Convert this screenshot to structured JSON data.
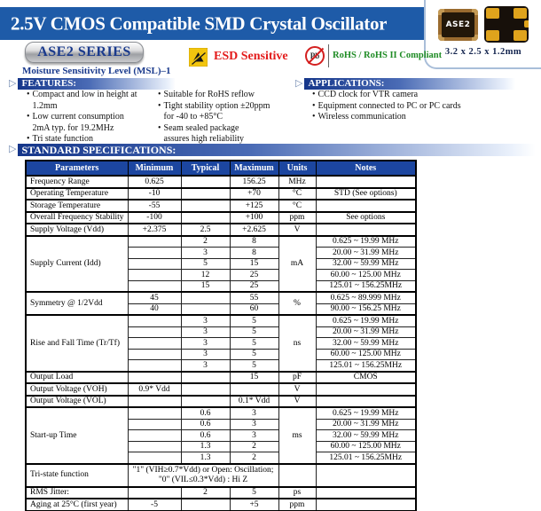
{
  "page": {
    "title": "2.5V CMOS Compatible SMD Crystal Oscillator",
    "series_badge": "ASE2 SERIES",
    "msl_note": "Moisture Sensitivity Level (MSL)–1",
    "esd_label": "ESD Sensitive",
    "pb_icon_text": "Pb",
    "rohs_label": "RoHS / RoHS II Compliant"
  },
  "package": {
    "chip_label": "ASE2",
    "dimensions": "3.2 x 2.5 x 1.2mm"
  },
  "colors": {
    "banner_blue": "#1E5BA8",
    "table_header_blue": "#1C46A0",
    "section_bar_navy": "#15368A",
    "esd_red": "#E31B1B",
    "rohs_green": "#1F8C25",
    "esd_yellow": "#F2C50E"
  },
  "sections": {
    "features": {
      "heading": "FEATURES:",
      "col1": [
        "Compact and low in height at 1.2mm",
        "Low current consumption\n2mA typ. for 19.2MHz",
        "Tri state function"
      ],
      "col2": [
        "Suitable for RoHS reflow",
        "Tight stability option ±20ppm\nfor -40 to +85°C",
        "Seam sealed package\nassures high reliability"
      ]
    },
    "applications": {
      "heading": "APPLICATIONS:",
      "items": [
        "CCD clock for VTR camera",
        "Equipment connected to PC or PC cards",
        "Wireless communication"
      ]
    },
    "specifications": {
      "heading": "STANDARD SPECIFICATIONS:"
    }
  },
  "spec_table": {
    "headers": [
      "Parameters",
      "Minimum",
      "Typical",
      "Maximum",
      "Units",
      "Notes"
    ],
    "rows": [
      {
        "g": true,
        "c": [
          {
            "t": "Frequency Range",
            "p": true
          },
          {
            "t": "0.625"
          },
          {
            "t": ""
          },
          {
            "t": "156.25"
          },
          {
            "t": "MHz"
          },
          {
            "t": ""
          }
        ]
      },
      {
        "g": true,
        "c": [
          {
            "t": "Operating Temperature",
            "p": true
          },
          {
            "t": "-10"
          },
          {
            "t": ""
          },
          {
            "t": "+70"
          },
          {
            "t": "°C"
          },
          {
            "t": "STD (See options)"
          }
        ]
      },
      {
        "g": true,
        "c": [
          {
            "t": "Storage Temperature",
            "p": true
          },
          {
            "t": "-55"
          },
          {
            "t": ""
          },
          {
            "t": "+125"
          },
          {
            "t": "°C"
          },
          {
            "t": ""
          }
        ]
      },
      {
        "g": true,
        "c": [
          {
            "t": "Overall Frequency Stability",
            "p": true
          },
          {
            "t": "-100"
          },
          {
            "t": ""
          },
          {
            "t": "+100"
          },
          {
            "t": "ppm"
          },
          {
            "t": "See options"
          }
        ]
      },
      {
        "g": true,
        "c": [
          {
            "t": "Supply Voltage (Vdd)",
            "p": true
          },
          {
            "t": "+2.375"
          },
          {
            "t": "2.5"
          },
          {
            "t": "+2.625"
          },
          {
            "t": "V"
          },
          {
            "t": ""
          }
        ]
      },
      {
        "g": true,
        "c": [
          {
            "t": "Supply Current (Idd)",
            "p": true,
            "rs": 5
          },
          {
            "t": ""
          },
          {
            "t": "2"
          },
          {
            "t": "8"
          },
          {
            "t": "mA",
            "rs": 5
          },
          {
            "t": "0.625 ~ 19.99 MHz"
          }
        ]
      },
      {
        "c": [
          {
            "t": ""
          },
          {
            "t": "3"
          },
          {
            "t": "8"
          },
          {
            "t": "20.00 ~ 31.99 MHz"
          }
        ]
      },
      {
        "c": [
          {
            "t": ""
          },
          {
            "t": "5"
          },
          {
            "t": "15"
          },
          {
            "t": "32.00 ~ 59.99 MHz"
          }
        ]
      },
      {
        "c": [
          {
            "t": ""
          },
          {
            "t": "12"
          },
          {
            "t": "25"
          },
          {
            "t": "60.00 ~ 125.00 MHz"
          }
        ]
      },
      {
        "c": [
          {
            "t": ""
          },
          {
            "t": "15"
          },
          {
            "t": "25"
          },
          {
            "t": "125.01 ~ 156.25MHz"
          }
        ]
      },
      {
        "g": true,
        "c": [
          {
            "t": "Symmetry  @ 1/2Vdd",
            "p": true,
            "rs": 2
          },
          {
            "t": "45"
          },
          {
            "t": ""
          },
          {
            "t": "55"
          },
          {
            "t": "%",
            "rs": 2
          },
          {
            "t": "0.625 ~ 89.999 MHz"
          }
        ]
      },
      {
        "c": [
          {
            "t": "40"
          },
          {
            "t": ""
          },
          {
            "t": "60"
          },
          {
            "t": "90.00 ~ 156.25 MHz"
          }
        ]
      },
      {
        "g": true,
        "c": [
          {
            "t": "Rise and Fall Time (Tr/Tf)",
            "p": true,
            "rs": 5
          },
          {
            "t": ""
          },
          {
            "t": "3"
          },
          {
            "t": "5"
          },
          {
            "t": "ns",
            "rs": 5
          },
          {
            "t": "0.625 ~ 19.99 MHz"
          }
        ]
      },
      {
        "c": [
          {
            "t": ""
          },
          {
            "t": "3"
          },
          {
            "t": "5"
          },
          {
            "t": "20.00 ~ 31.99 MHz"
          }
        ]
      },
      {
        "c": [
          {
            "t": ""
          },
          {
            "t": "3"
          },
          {
            "t": "5"
          },
          {
            "t": "32.00 ~ 59.99 MHz"
          }
        ]
      },
      {
        "c": [
          {
            "t": ""
          },
          {
            "t": "3"
          },
          {
            "t": "5"
          },
          {
            "t": "60.00 ~ 125.00 MHz"
          }
        ]
      },
      {
        "c": [
          {
            "t": ""
          },
          {
            "t": "3"
          },
          {
            "t": "5"
          },
          {
            "t": "125.01 ~ 156.25MHz"
          }
        ]
      },
      {
        "g": true,
        "c": [
          {
            "t": "Output Load",
            "p": true
          },
          {
            "t": ""
          },
          {
            "t": ""
          },
          {
            "t": "15"
          },
          {
            "t": "pF"
          },
          {
            "t": "CMOS"
          }
        ]
      },
      {
        "g": true,
        "c": [
          {
            "t": "Output Voltage (VOH)",
            "p": true
          },
          {
            "t": "0.9* Vdd"
          },
          {
            "t": ""
          },
          {
            "t": ""
          },
          {
            "t": "V"
          },
          {
            "t": ""
          }
        ]
      },
      {
        "g": true,
        "c": [
          {
            "t": "Output Voltage (VOL)",
            "p": true
          },
          {
            "t": ""
          },
          {
            "t": ""
          },
          {
            "t": "0.1* Vdd"
          },
          {
            "t": "V"
          },
          {
            "t": ""
          }
        ]
      },
      {
        "g": true,
        "c": [
          {
            "t": "Start-up Time",
            "p": true,
            "rs": 5
          },
          {
            "t": ""
          },
          {
            "t": "0.6"
          },
          {
            "t": "3"
          },
          {
            "t": "ms",
            "rs": 5
          },
          {
            "t": "0.625 ~ 19.99 MHz"
          }
        ]
      },
      {
        "c": [
          {
            "t": ""
          },
          {
            "t": "0.6"
          },
          {
            "t": "3"
          },
          {
            "t": "20.00 ~ 31.99 MHz"
          }
        ]
      },
      {
        "c": [
          {
            "t": ""
          },
          {
            "t": "0.6"
          },
          {
            "t": "3"
          },
          {
            "t": "32.00 ~ 59.99 MHz"
          }
        ]
      },
      {
        "c": [
          {
            "t": ""
          },
          {
            "t": "1.3"
          },
          {
            "t": "2"
          },
          {
            "t": "60.00 ~ 125.00 MHz"
          }
        ]
      },
      {
        "c": [
          {
            "t": ""
          },
          {
            "t": "1.3"
          },
          {
            "t": "2"
          },
          {
            "t": "125.01 ~ 156.25MHz"
          }
        ]
      },
      {
        "g": true,
        "tall": true,
        "c": [
          {
            "t": "Tri-state function",
            "p": true
          },
          {
            "t": "\"1\" (VIH≥0.7*Vdd) or Open: Oscillation;\n\"0\" (VIL≤0.3*Vdd) : Hi Z",
            "cs": 3
          },
          {
            "t": ""
          },
          {
            "t": ""
          }
        ]
      },
      {
        "g": true,
        "c": [
          {
            "t": "RMS Jitter:",
            "p": true
          },
          {
            "t": ""
          },
          {
            "t": "2"
          },
          {
            "t": "5"
          },
          {
            "t": "ps"
          },
          {
            "t": ""
          }
        ]
      },
      {
        "g": true,
        "c": [
          {
            "t": "Aging at 25°C (first year)",
            "p": true
          },
          {
            "t": "-5"
          },
          {
            "t": ""
          },
          {
            "t": "+5"
          },
          {
            "t": "ppm"
          },
          {
            "t": ""
          }
        ]
      },
      {
        "g": true,
        "c": [
          {
            "t": "Stand-by Current:",
            "p": true
          },
          {
            "t": ""
          },
          {
            "t": ""
          },
          {
            "t": "10"
          },
          {
            "t": "μA"
          },
          {
            "t": ""
          }
        ]
      }
    ]
  }
}
